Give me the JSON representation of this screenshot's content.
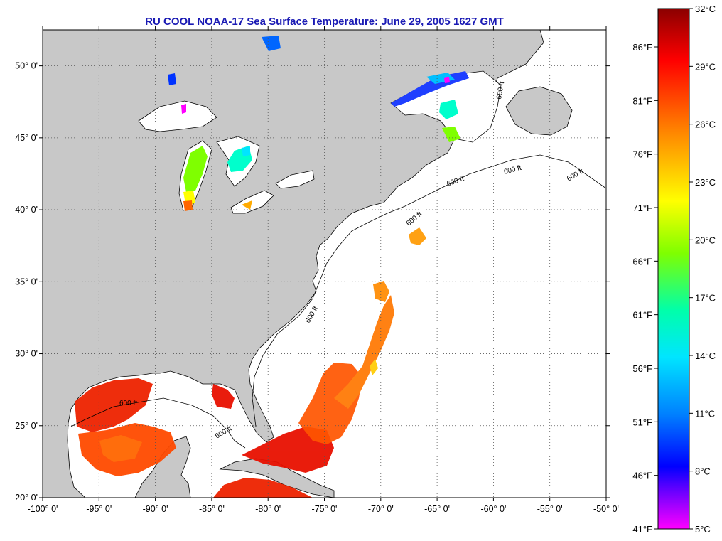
{
  "title": "RU COOL  NOAA-17  Sea Surface Temperature:  June 29, 2005 1627 GMT",
  "map": {
    "lon_range": [
      -100,
      -50
    ],
    "lat_range": [
      20,
      52.5
    ],
    "lon_ticks": [
      "-100° 0'",
      "-95° 0'",
      "-90° 0'",
      "-85° 0'",
      "-80° 0'",
      "-75° 0'",
      "-70° 0'",
      "-65° 0'",
      "-60° 0'",
      "-55° 0'",
      "-50° 0'"
    ],
    "lat_ticks": [
      "20° 0'",
      "25° 0'",
      "30° 0'",
      "35° 0'",
      "40° 0'",
      "45° 0'",
      "50° 0'"
    ],
    "depth_contour_label": "600 ft",
    "land_color": "#c8c8c8",
    "water_color": "#ffffff"
  },
  "colorbar": {
    "celsius_labels": [
      "32°C",
      "29°C",
      "26°C",
      "23°C",
      "20°C",
      "17°C",
      "14°C",
      "11°C",
      "8°C",
      "5°C"
    ],
    "fahrenheit_labels": [
      "86°F",
      "81°F",
      "76°F",
      "71°F",
      "66°F",
      "61°F",
      "56°F",
      "51°F",
      "46°F",
      "41°F"
    ],
    "colors_top_to_bottom": [
      "#8b0000",
      "#ff0000",
      "#ff7f00",
      "#ffff00",
      "#7fff00",
      "#00ffaa",
      "#00ffff",
      "#0080ff",
      "#0000ff",
      "#7f00ff",
      "#ff00ff"
    ]
  }
}
